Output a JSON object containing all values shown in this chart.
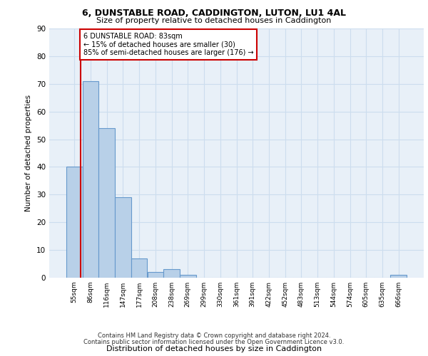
{
  "title1": "6, DUNSTABLE ROAD, CADDINGTON, LUTON, LU1 4AL",
  "title2": "Size of property relative to detached houses in Caddington",
  "xlabel": "Distribution of detached houses by size in Caddington",
  "ylabel": "Number of detached properties",
  "categories": [
    "55sqm",
    "86sqm",
    "116sqm",
    "147sqm",
    "177sqm",
    "208sqm",
    "238sqm",
    "269sqm",
    "299sqm",
    "330sqm",
    "361sqm",
    "391sqm",
    "422sqm",
    "452sqm",
    "483sqm",
    "513sqm",
    "544sqm",
    "574sqm",
    "605sqm",
    "635sqm",
    "666sqm"
  ],
  "values": [
    40,
    71,
    54,
    29,
    7,
    2,
    3,
    1,
    0,
    0,
    0,
    0,
    0,
    0,
    0,
    0,
    0,
    0,
    0,
    0,
    1
  ],
  "bar_color": "#b8d0e8",
  "bar_edge_color": "#6699cc",
  "annotation_text": "6 DUNSTABLE ROAD: 83sqm\n← 15% of detached houses are smaller (30)\n85% of semi-detached houses are larger (176) →",
  "annotation_box_color": "#ffffff",
  "annotation_box_edge": "#cc0000",
  "vline_color": "#cc0000",
  "ylim": [
    0,
    90
  ],
  "yticks": [
    0,
    10,
    20,
    30,
    40,
    50,
    60,
    70,
    80,
    90
  ],
  "grid_color": "#ccddee",
  "bg_color": "#e8f0f8",
  "footer1": "Contains HM Land Registry data © Crown copyright and database right 2024.",
  "footer2": "Contains public sector information licensed under the Open Government Licence v3.0."
}
